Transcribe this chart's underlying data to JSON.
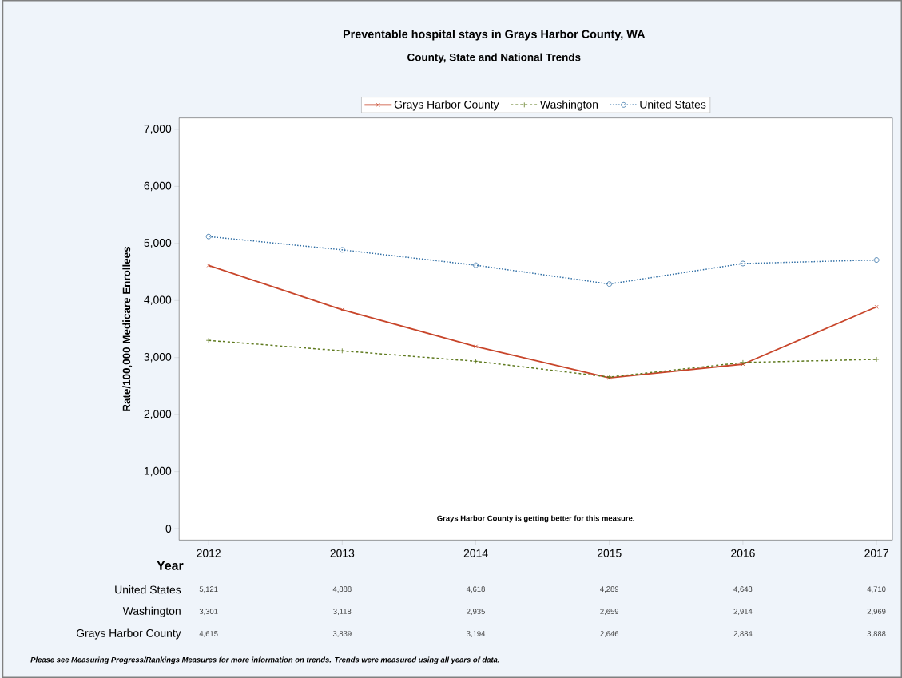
{
  "chart_data": {
    "type": "line",
    "title": "Preventable hospital stays in Grays Harbor County, WA",
    "subtitle": "County, State and National Trends",
    "ylabel": "Rate/100,000 Medicare Enrollees",
    "xlabel": "Year",
    "categories": [
      "2012",
      "2013",
      "2014",
      "2015",
      "2016",
      "2017"
    ],
    "series": [
      {
        "name": "Grays Harbor County",
        "color": "#c8452a",
        "marker": "cross",
        "line_style": "solid",
        "values": [
          4615,
          3839,
          3194,
          2646,
          2884,
          3888
        ],
        "value_labels": [
          "4,615",
          "3,839",
          "3,194",
          "2,646",
          "2,884",
          "3,888"
        ]
      },
      {
        "name": "Washington",
        "color": "#5f7a1f",
        "marker": "plus",
        "line_style": "dashed",
        "values": [
          3301,
          3118,
          2935,
          2659,
          2914,
          2969
        ],
        "value_labels": [
          "3,301",
          "3,118",
          "2,935",
          "2,659",
          "2,914",
          "2,969"
        ]
      },
      {
        "name": "United States",
        "color": "#2e6da4",
        "marker": "circle",
        "line_style": "dotted",
        "values": [
          5121,
          4888,
          4618,
          4289,
          4648,
          4710
        ],
        "value_labels": [
          "5,121",
          "4,888",
          "4,618",
          "4,289",
          "4,648",
          "4,710"
        ]
      }
    ],
    "ylim": [
      -200,
      7200
    ],
    "yticks": [
      {
        "value": 0,
        "label": "0"
      },
      {
        "value": 1000,
        "label": "1,000"
      },
      {
        "value": 2000,
        "label": "2,000"
      },
      {
        "value": 3000,
        "label": "3,000"
      },
      {
        "value": 4000,
        "label": "4,000"
      },
      {
        "value": 5000,
        "label": "5,000"
      },
      {
        "value": 6000,
        "label": "6,000"
      },
      {
        "value": 7000,
        "label": "7,000"
      }
    ],
    "legend": "top",
    "grid": false,
    "annotations": [
      "Grays Harbor County is getting better for this measure.",
      "Please see Measuring Progress/Rankings Measures for more information on trends. Trends were measured using all years of data."
    ]
  }
}
